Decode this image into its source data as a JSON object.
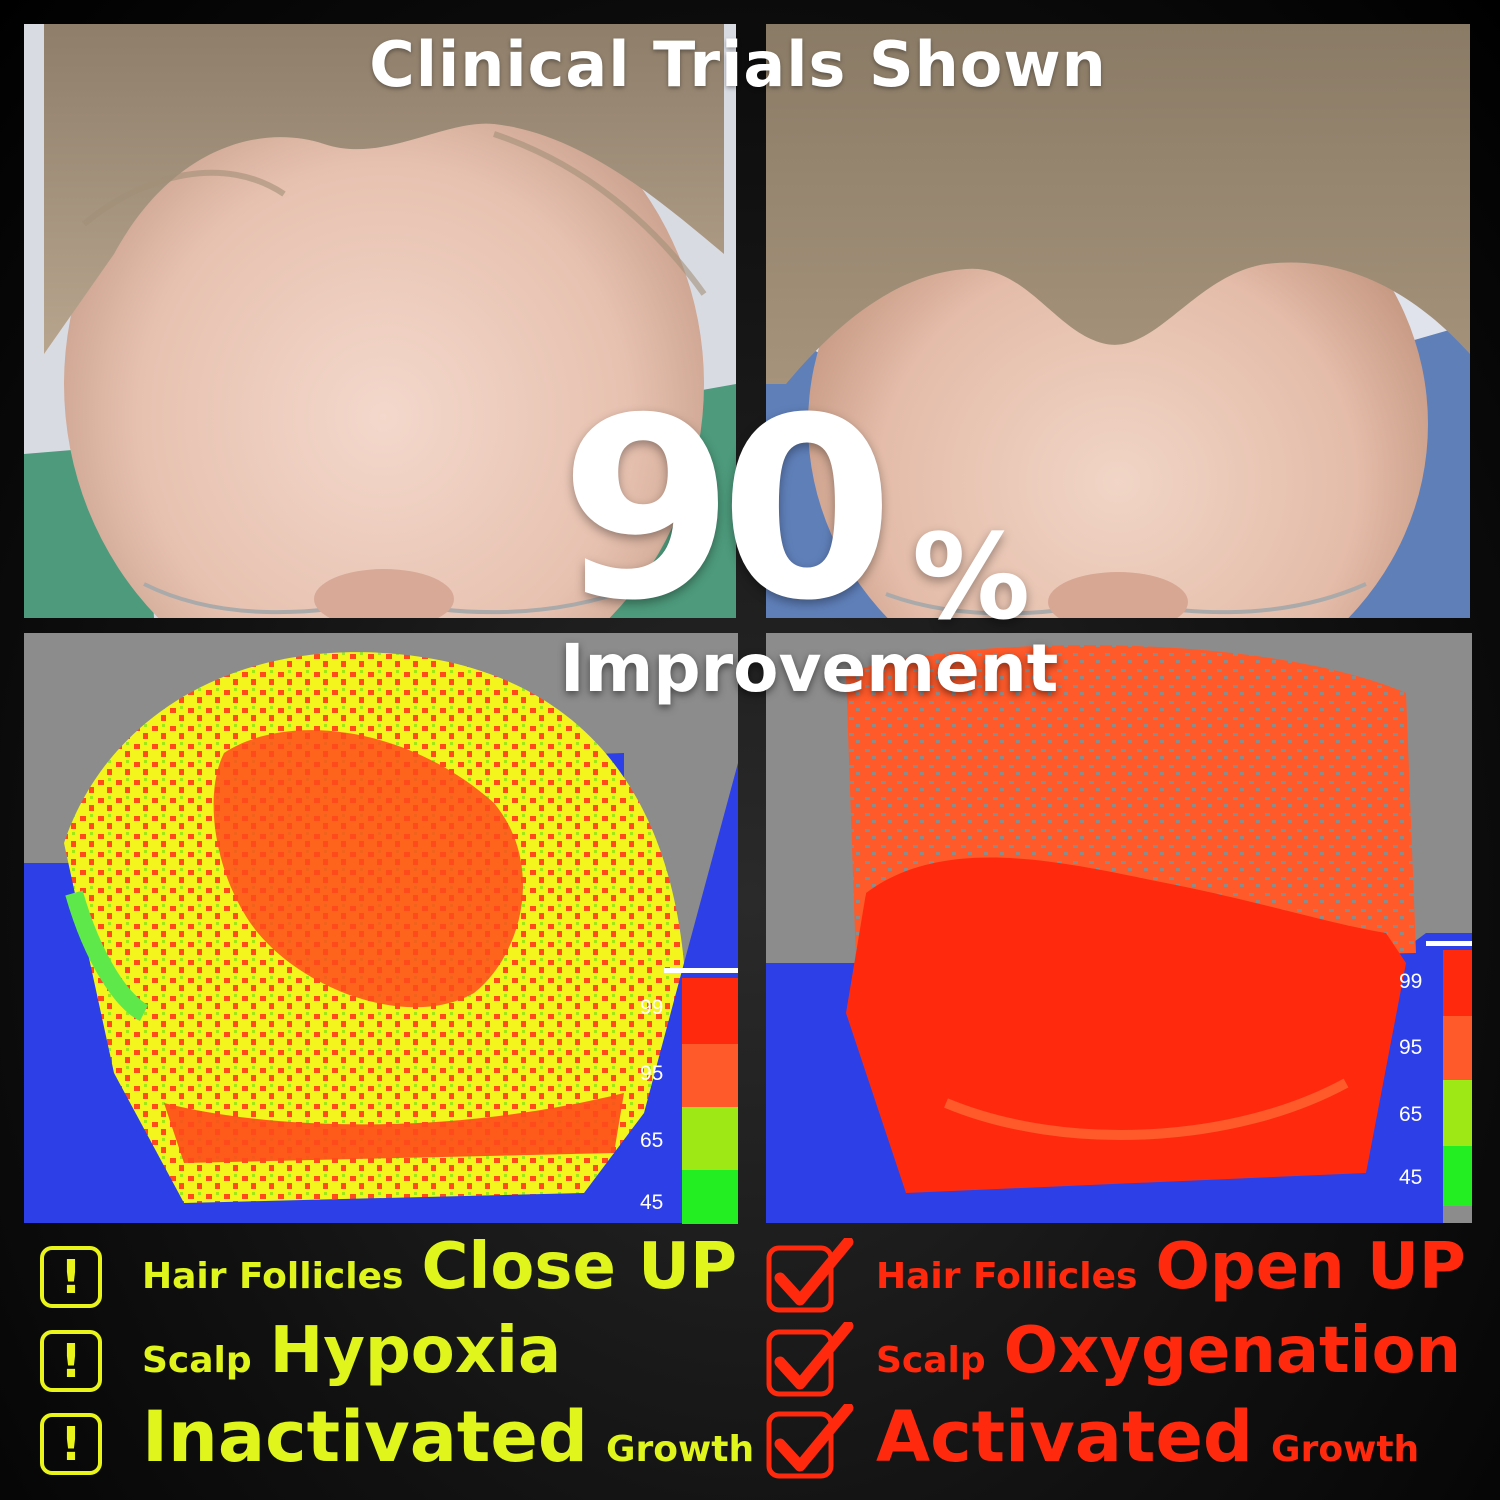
{
  "header": {
    "title": "Clinical Trials Shown"
  },
  "stat": {
    "value": "90",
    "percent_sign": "%",
    "label": "Improvement"
  },
  "scale": {
    "levels": [
      "99",
      "95",
      "65",
      "45"
    ],
    "colors": [
      "#ff2a0e",
      "#ff5a2a",
      "#9ee816",
      "#22ee22"
    ]
  },
  "before": {
    "items": [
      {
        "small": "Hair Follicles",
        "large": "Close UP"
      },
      {
        "small": "Scalp",
        "large": "Hypoxia"
      },
      {
        "large": "Inactivated",
        "small": "Growth"
      }
    ],
    "icon": "exclamation-icon",
    "icon_glyph": "!",
    "color": "#dff51c"
  },
  "after": {
    "items": [
      {
        "small": "Hair Follicles",
        "large": "Open UP"
      },
      {
        "small": "Scalp",
        "large": "Oxygenation"
      },
      {
        "large": "Activated",
        "small": "Growth"
      }
    ],
    "icon": "checkmark-icon",
    "color": "#ff2a0e"
  }
}
